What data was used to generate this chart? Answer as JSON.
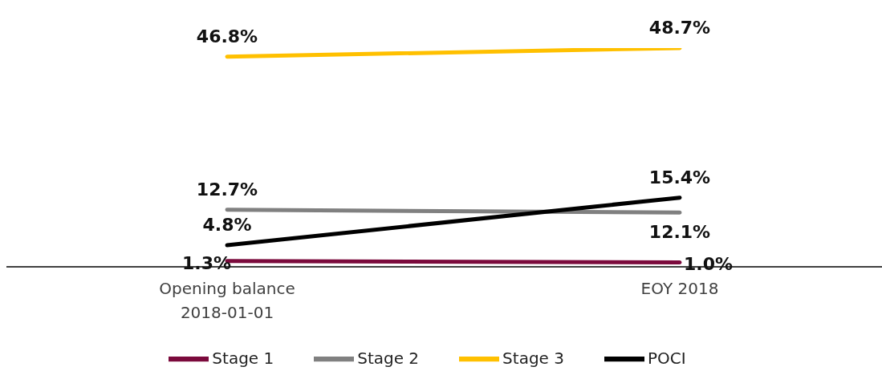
{
  "chart_data": {
    "type": "line",
    "categories": [
      "Opening balance\n2018-01-01",
      "EOY 2018"
    ],
    "tick_labels": "x",
    "grid": false,
    "legend": "bottom",
    "marker": "none",
    "line_style": "solid",
    "series": [
      {
        "name": "Stage 1",
        "color": "#7b0a3c",
        "values": [
          1.3,
          1.0
        ],
        "value_labels": [
          "1.3%",
          "1.0%"
        ]
      },
      {
        "name": "Stage 2",
        "color": "#808080",
        "values": [
          12.7,
          12.1
        ],
        "value_labels": [
          "12.7%",
          "12.1%"
        ]
      },
      {
        "name": "Stage 3",
        "color": "#ffc000",
        "values": [
          46.8,
          48.7
        ],
        "value_labels": [
          "46.8%",
          "48.7%"
        ]
      },
      {
        "name": "POCI",
        "color": "#000000",
        "values": [
          4.8,
          15.4
        ],
        "value_labels": [
          "4.8%",
          "15.4%"
        ]
      }
    ]
  }
}
